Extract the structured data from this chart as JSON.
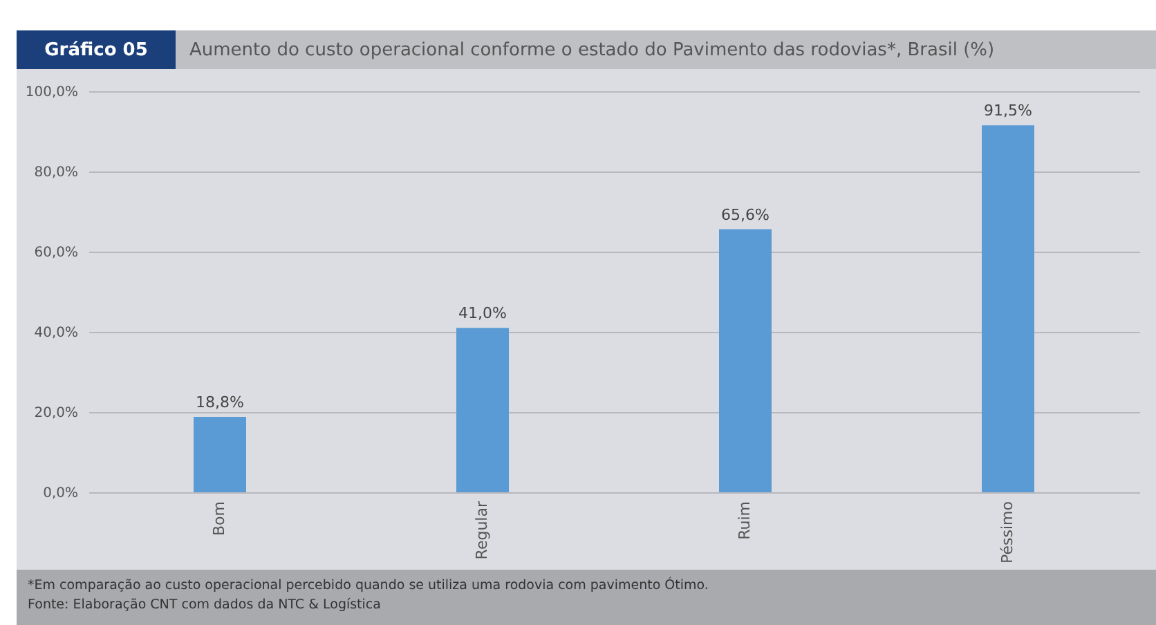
{
  "chart_data": {
    "type": "bar",
    "title": "Aumento do custo operacional conforme o estado do Pavimento das rodovias*, Brasil (%)",
    "subtitle": "Gráfico 05",
    "categories": [
      "Bom",
      "Regular",
      "Ruim",
      "Péssimo"
    ],
    "values": [
      18.8,
      41.0,
      65.6,
      91.5
    ],
    "value_labels": [
      "18,8%",
      "41,0%",
      "65,6%",
      "91,5%"
    ],
    "color": "#5b9bd5",
    "ylim": [
      0,
      100
    ],
    "yticks": [
      {
        "value": 0,
        "label": "0,0%"
      },
      {
        "value": 20,
        "label": "20,0%"
      },
      {
        "value": 40,
        "label": "40,0%"
      },
      {
        "value": 60,
        "label": "60,0%"
      },
      {
        "value": 80,
        "label": "80,0%"
      },
      {
        "value": 100,
        "label": "100,0%"
      }
    ],
    "grid": "y",
    "annotations": [
      "*Em comparação ao custo operacional percebido quando se utiliza uma rodovia com pavimento Ótimo.",
      "Fonte: Elaboração CNT com dados da NTC & Logística"
    ]
  }
}
